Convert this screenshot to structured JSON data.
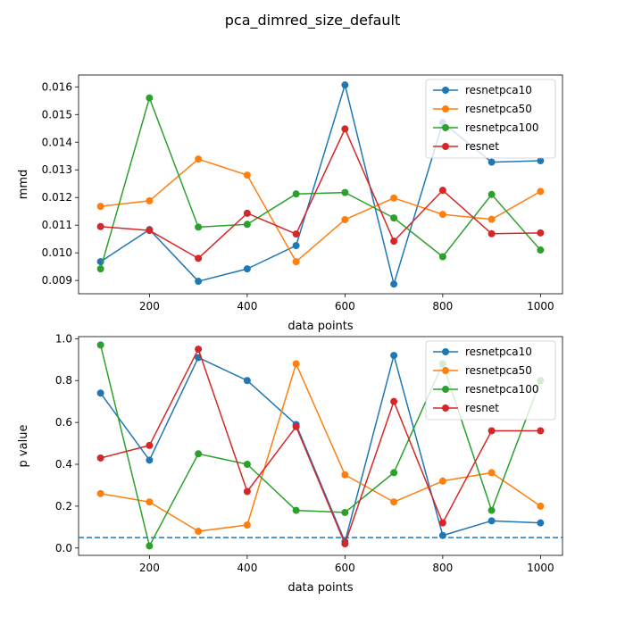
{
  "suptitle": "pca_dimred_size_default",
  "colors": {
    "resnetpca10": "#1f77b4",
    "resnetpca50": "#ff7f0e",
    "resnetpca100": "#2ca02c",
    "resnet": "#d62728",
    "threshold": "#1f77b4"
  },
  "chart_data": [
    {
      "type": "line",
      "ylabel": "mmd",
      "xlabel": "data points",
      "x": [
        100,
        200,
        300,
        400,
        500,
        600,
        700,
        800,
        900,
        1000
      ],
      "xlim": [
        55,
        1045
      ],
      "ylim": [
        0.00852,
        0.01643
      ],
      "xticks": [
        200,
        400,
        600,
        800,
        1000
      ],
      "yticks": [
        0.009,
        0.01,
        0.011,
        0.012,
        0.013,
        0.014,
        0.015,
        0.016
      ],
      "ytick_labels": [
        "0.009",
        "0.010",
        "0.011",
        "0.012",
        "0.013",
        "0.014",
        "0.015",
        "0.016"
      ],
      "legend_position": "top-right",
      "series": [
        {
          "name": "resnetpca10",
          "values": [
            0.00968,
            0.01084,
            0.00897,
            0.00942,
            0.01026,
            0.01607,
            0.00887,
            0.01471,
            0.01328,
            0.01333
          ]
        },
        {
          "name": "resnetpca50",
          "values": [
            0.01168,
            0.01188,
            0.01339,
            0.01281,
            0.00968,
            0.0112,
            0.01198,
            0.01139,
            0.01121,
            0.01222
          ]
        },
        {
          "name": "resnetpca100",
          "values": [
            0.00942,
            0.0156,
            0.01093,
            0.01103,
            0.01213,
            0.01218,
            0.01126,
            0.00986,
            0.01211,
            0.0101
          ]
        },
        {
          "name": "resnet",
          "values": [
            0.01095,
            0.01081,
            0.0098,
            0.01143,
            0.01068,
            0.01448,
            0.01042,
            0.01226,
            0.01069,
            0.01072
          ]
        }
      ]
    },
    {
      "type": "line",
      "ylabel": "p value",
      "xlabel": "data points",
      "x": [
        100,
        200,
        300,
        400,
        500,
        600,
        700,
        800,
        900,
        1000
      ],
      "xlim": [
        55,
        1045
      ],
      "ylim": [
        -0.035,
        1.01
      ],
      "xticks": [
        200,
        400,
        600,
        800,
        1000
      ],
      "yticks": [
        0.0,
        0.2,
        0.4,
        0.6,
        0.8,
        1.0
      ],
      "ytick_labels": [
        "0.0",
        "0.2",
        "0.4",
        "0.6",
        "0.8",
        "1.0"
      ],
      "threshold": 0.05,
      "legend_position": "top-right",
      "series": [
        {
          "name": "resnetpca10",
          "values": [
            0.74,
            0.42,
            0.91,
            0.8,
            0.59,
            0.03,
            0.92,
            0.06,
            0.13,
            0.12
          ]
        },
        {
          "name": "resnetpca50",
          "values": [
            0.26,
            0.22,
            0.08,
            0.11,
            0.88,
            0.35,
            0.22,
            0.32,
            0.36,
            0.2
          ]
        },
        {
          "name": "resnetpca100",
          "values": [
            0.97,
            0.01,
            0.45,
            0.4,
            0.18,
            0.17,
            0.36,
            0.88,
            0.18,
            0.8
          ]
        },
        {
          "name": "resnet",
          "values": [
            0.43,
            0.49,
            0.95,
            0.27,
            0.58,
            0.02,
            0.7,
            0.12,
            0.56,
            0.56
          ]
        }
      ]
    }
  ]
}
